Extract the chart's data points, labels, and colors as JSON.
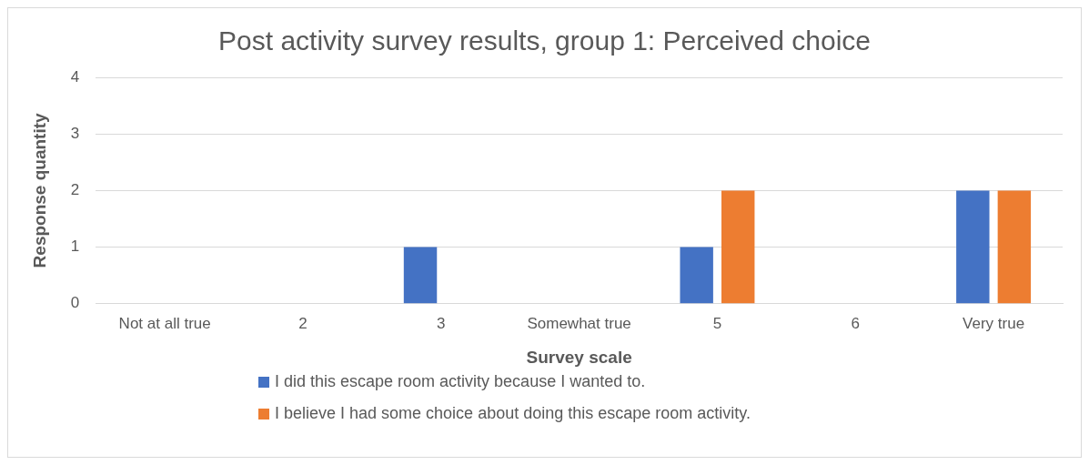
{
  "chart_data": {
    "type": "bar",
    "title": "Post activity survey results, group 1: Perceived choice",
    "xlabel": "Survey scale",
    "ylabel": "Response quantity",
    "categories": [
      "Not at all true",
      "2",
      "3",
      "Somewhat true",
      "5",
      "6",
      "Very true"
    ],
    "series": [
      {
        "name": "I did this escape room activity because I wanted to.",
        "color": "#4472c4",
        "values": [
          0,
          0,
          1,
          0,
          1,
          0,
          2
        ]
      },
      {
        "name": "I believe I had some choice about doing this escape room activity.",
        "color": "#ed7d31",
        "values": [
          0,
          0,
          0,
          0,
          2,
          0,
          2
        ]
      }
    ],
    "ylim": [
      0,
      4
    ],
    "yticks": [
      0,
      1,
      2,
      3,
      4
    ],
    "grid": "y",
    "legend": "bottom"
  }
}
